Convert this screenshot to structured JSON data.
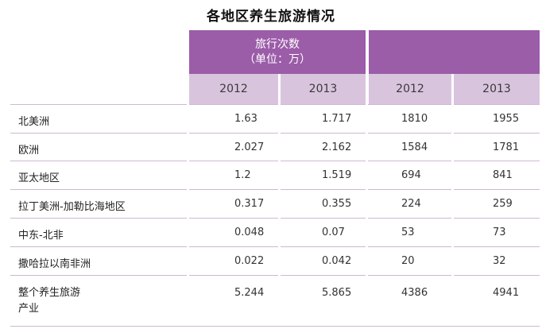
{
  "title": "各地区养生旅游情况",
  "header": {
    "group_left_line1": "旅行次数",
    "group_left_line2": "（单位：万）",
    "group_right": ""
  },
  "years": [
    "2012",
    "2013",
    "2012",
    "2013"
  ],
  "rows": [
    {
      "region": "北美洲",
      "values": [
        "1.63",
        "1.717",
        "1810",
        "1955"
      ]
    },
    {
      "region": "欧洲",
      "values": [
        "2.027",
        "2.162",
        "1584",
        "1781"
      ]
    },
    {
      "region": "亚太地区",
      "values": [
        "1.2",
        "1.519",
        "694",
        "841"
      ]
    },
    {
      "region": "拉丁美洲-加勒比海地区",
      "values": [
        "0.317",
        "0.355",
        "224",
        "259"
      ]
    },
    {
      "region": "中东-北非",
      "values": [
        "0.048",
        "0.07",
        "53",
        "73"
      ]
    },
    {
      "region": "撒哈拉以南非洲",
      "values": [
        "0.022",
        "0.042",
        "20",
        "32"
      ]
    },
    {
      "region_line1": "整个养生旅游",
      "region_line2": "产业",
      "values": [
        "5.244",
        "5.865",
        "4386",
        "4941"
      ]
    }
  ],
  "colors": {
    "header_dark": "#9b5ca8",
    "header_light": "#d9c4de",
    "row_rule": "#cdb8d3"
  }
}
